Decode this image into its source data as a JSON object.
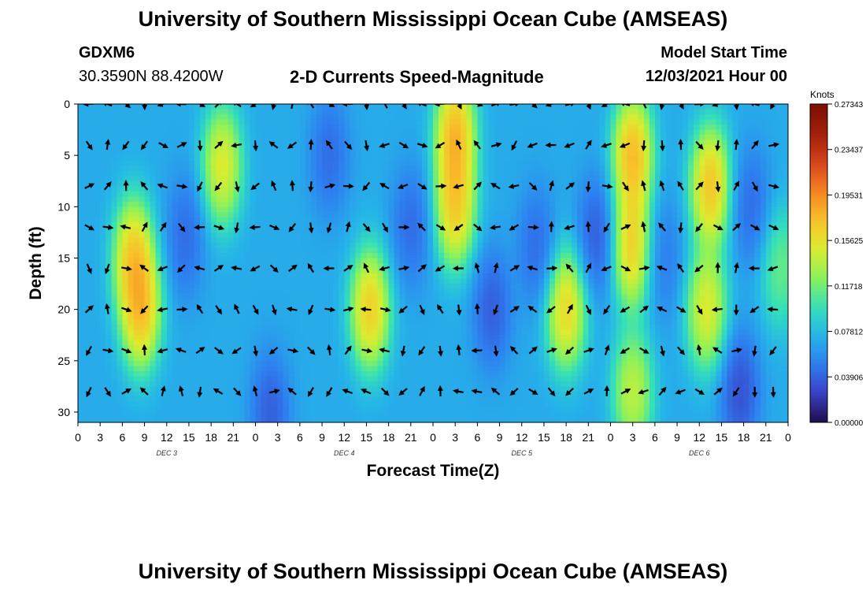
{
  "page": {
    "title": "University of Southern Mississippi Ocean Cube (AMSEAS)",
    "title_repeat": "University of Southern Mississippi Ocean Cube (AMSEAS)",
    "station": "GDXM6",
    "coords": "30.3590N  88.4200W",
    "subtitle": "2-D Currents Speed-Magnitude",
    "model_start_label": "Model Start Time",
    "model_start_value": "12/03/2021 Hour 00"
  },
  "chart_data": {
    "type": "heatmap",
    "title": "2-D Currents Speed-Magnitude",
    "xlabel": "Forecast Time(Z)",
    "ylabel": "Depth (ft)",
    "x_ticks": [
      "0",
      "3",
      "6",
      "9",
      "12",
      "15",
      "18",
      "21",
      "0",
      "3",
      "6",
      "9",
      "12",
      "15",
      "18",
      "21",
      "0",
      "3",
      "6",
      "9",
      "12",
      "15",
      "18",
      "21",
      "0",
      "3",
      "6",
      "9",
      "12",
      "15",
      "18",
      "21",
      "0"
    ],
    "x_range_hours": [
      0,
      96
    ],
    "day_labels": [
      {
        "label": "DEC 3",
        "hour": 12
      },
      {
        "label": "DEC 4",
        "hour": 36
      },
      {
        "label": "DEC 5",
        "hour": 60
      },
      {
        "label": "DEC 6",
        "hour": 84
      }
    ],
    "y_ticks": [
      "0",
      "5",
      "10",
      "15",
      "20",
      "25",
      "30"
    ],
    "y_range_ft": [
      0,
      31
    ],
    "y_inverted": true,
    "colorbar": {
      "unit": "Knots",
      "min": 0.0,
      "max": 0.27343,
      "tick_labels": [
        "0.27343",
        "0.23437",
        "0.19531",
        "0.15625",
        "0.11718",
        "0.07812",
        "0.03906",
        "0.00000"
      ]
    },
    "colormap": [
      "#1e0f4a",
      "#3b3fc5",
      "#2e7ef0",
      "#25b5e8",
      "#35e0b8",
      "#8cf25a",
      "#dcec2f",
      "#f8c22a",
      "#f58220",
      "#d6411a",
      "#a01d0a",
      "#7a0f03"
    ],
    "arrow_depths_ft": [
      0,
      4,
      8,
      12,
      16,
      20,
      24,
      28
    ],
    "speed_features": [
      {
        "time_hour": 7.5,
        "depth_ft": 15,
        "speed": 0.25
      },
      {
        "time_hour": 8.5,
        "depth_ft": 20,
        "speed": 0.26
      },
      {
        "time_hour": 19.5,
        "depth_ft": 6,
        "speed": 0.22
      },
      {
        "time_hour": 14.5,
        "depth_ft": 13,
        "speed": 0.02
      },
      {
        "time_hour": 26,
        "depth_ft": 30,
        "speed": 0.01
      },
      {
        "time_hour": 34,
        "depth_ft": 5,
        "speed": 0.02
      },
      {
        "time_hour": 39.5,
        "depth_ft": 20,
        "speed": 0.25
      },
      {
        "time_hour": 45,
        "depth_ft": 12,
        "speed": 0.02
      },
      {
        "time_hour": 51,
        "depth_ft": 3,
        "speed": 0.27
      },
      {
        "time_hour": 51,
        "depth_ft": 10,
        "speed": 0.25
      },
      {
        "time_hour": 56,
        "depth_ft": 20,
        "speed": 0.01
      },
      {
        "time_hour": 62,
        "depth_ft": 14,
        "speed": 0.02
      },
      {
        "time_hour": 66,
        "depth_ft": 20,
        "speed": 0.24
      },
      {
        "time_hour": 70,
        "depth_ft": 13,
        "speed": 0.01
      },
      {
        "time_hour": 75,
        "depth_ft": 5,
        "speed": 0.27
      },
      {
        "time_hour": 75,
        "depth_ft": 14,
        "speed": 0.25
      },
      {
        "time_hour": 75,
        "depth_ft": 28,
        "speed": 0.2
      },
      {
        "time_hour": 79,
        "depth_ft": 15,
        "speed": 0.03
      },
      {
        "time_hour": 85.5,
        "depth_ft": 8,
        "speed": 0.26
      },
      {
        "time_hour": 85,
        "depth_ft": 20,
        "speed": 0.22
      },
      {
        "time_hour": 89.5,
        "depth_ft": 28,
        "speed": 0.0
      },
      {
        "time_hour": 91,
        "depth_ft": 10,
        "speed": 0.02
      },
      {
        "time_hour": 95,
        "depth_ft": 16,
        "speed": 0.15
      }
    ]
  }
}
